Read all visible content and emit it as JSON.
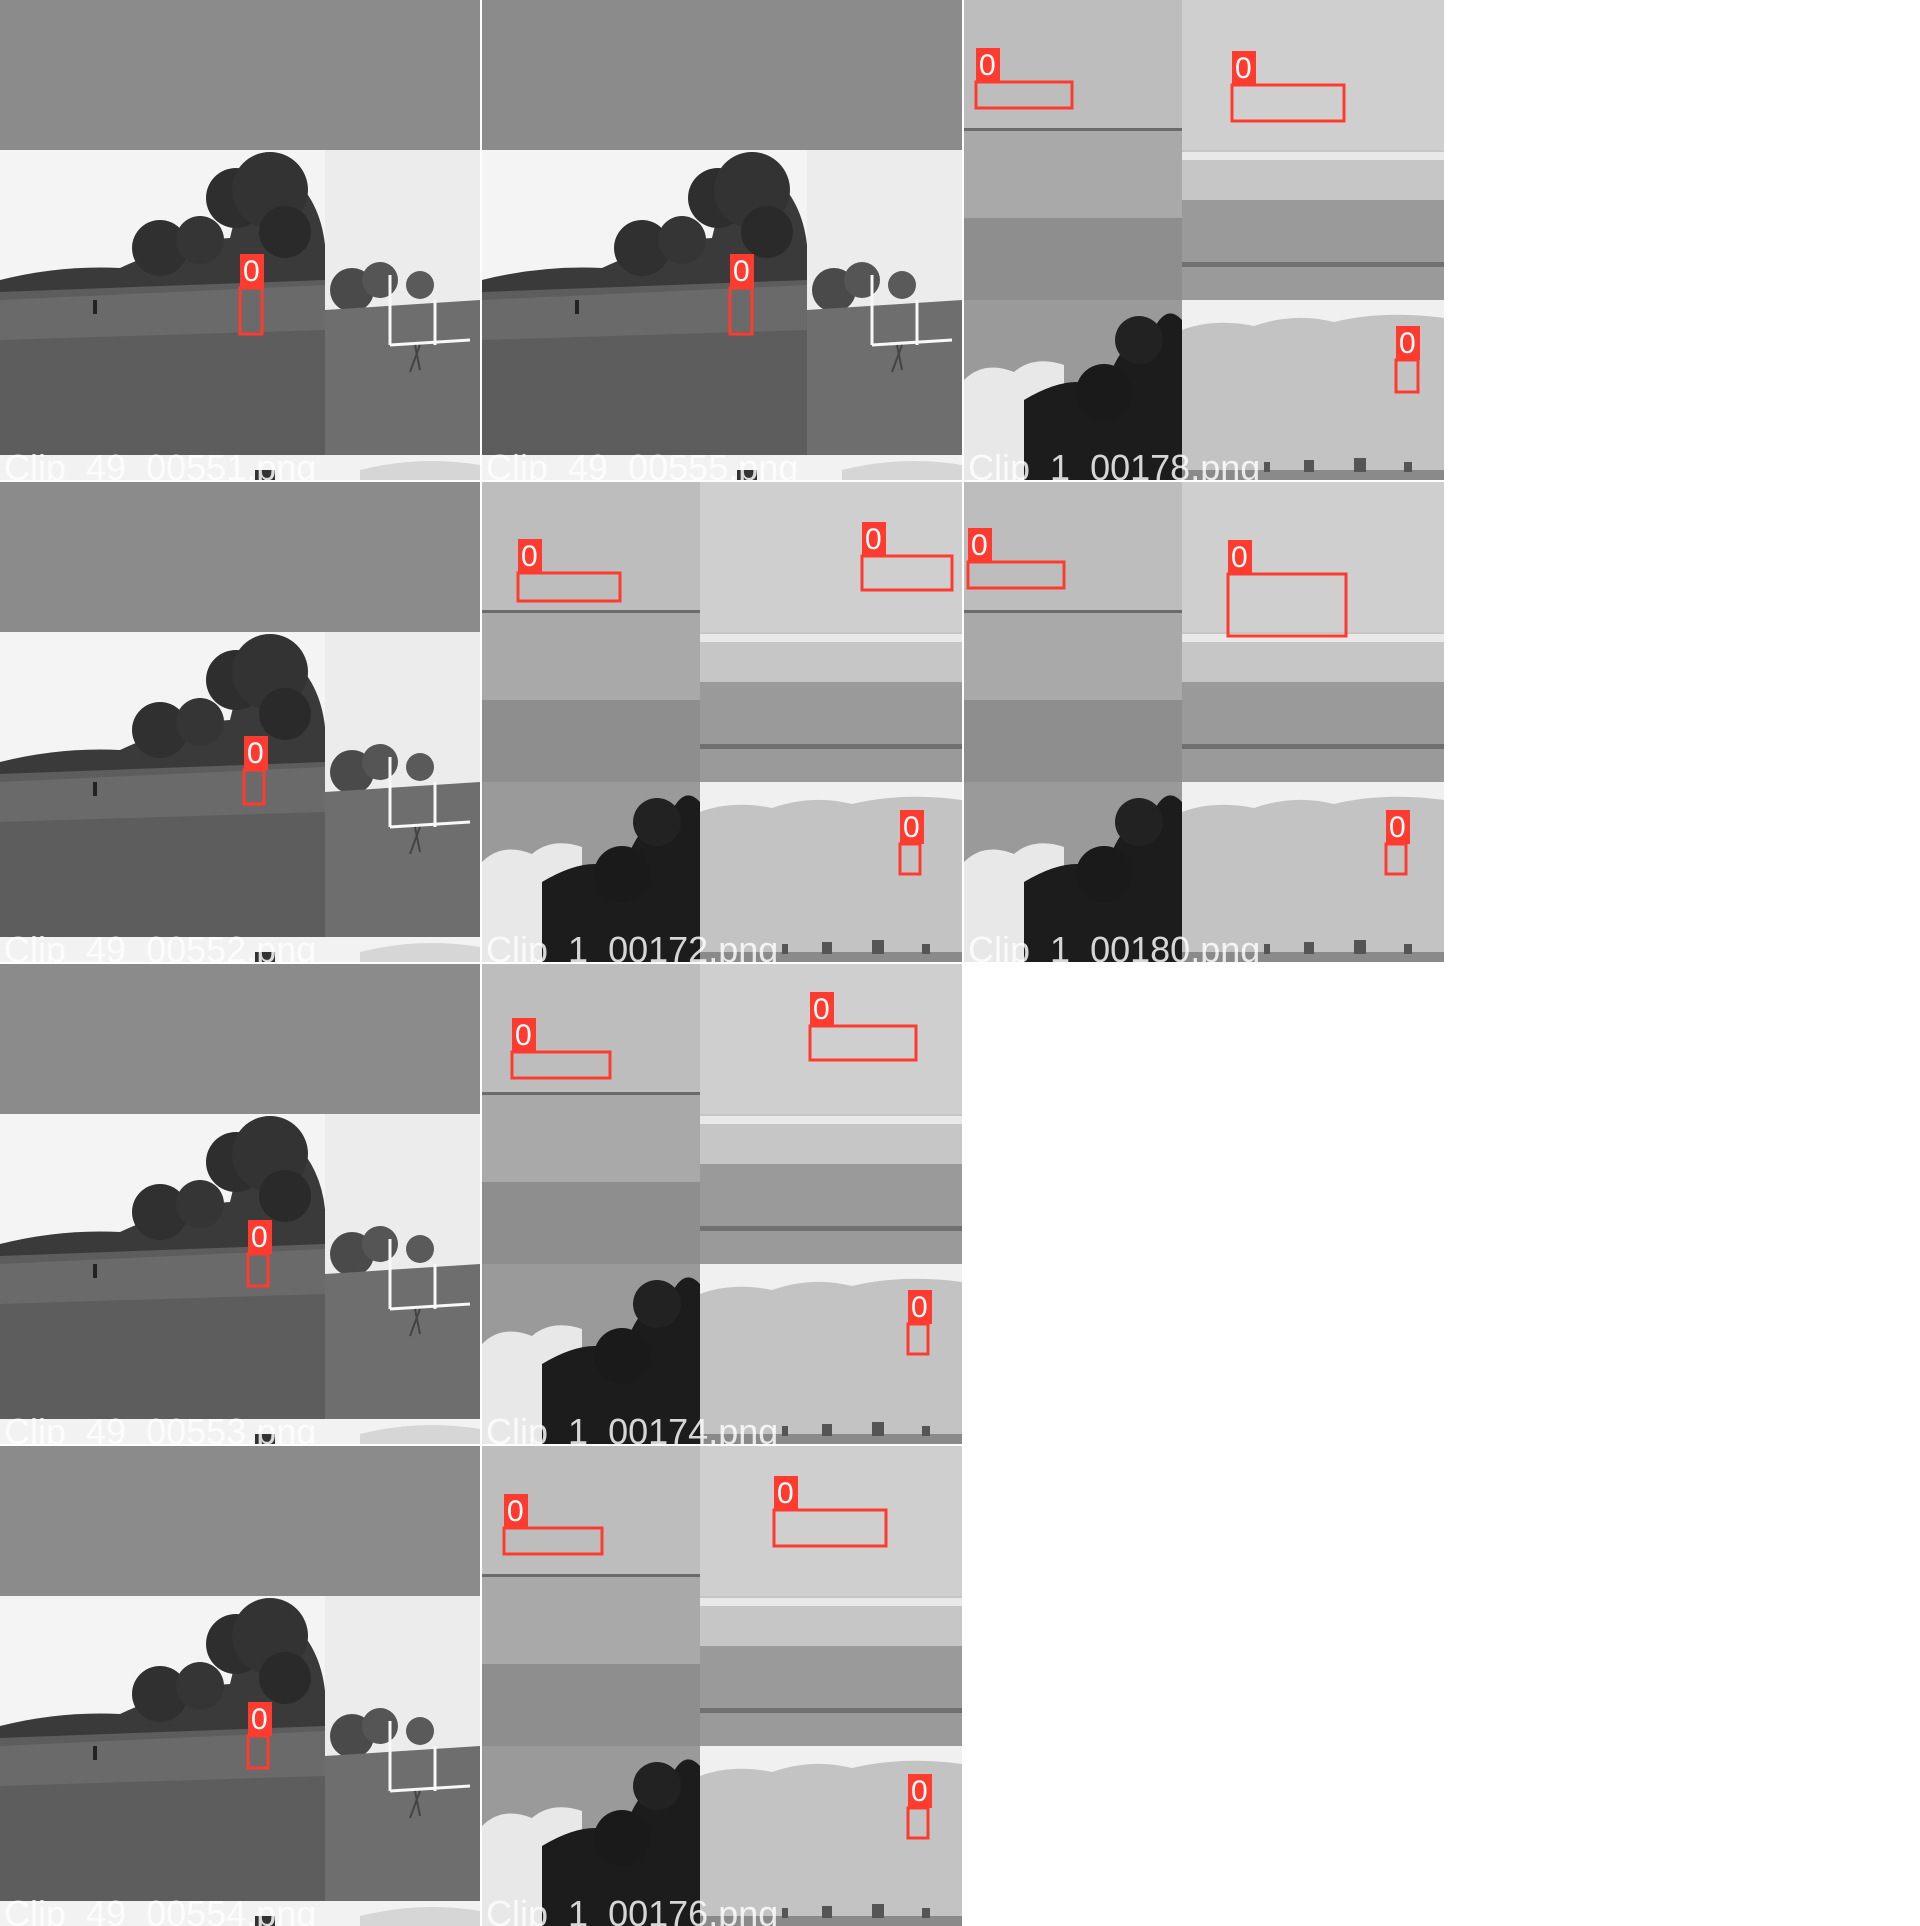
{
  "mosaic": {
    "background_color": "#ffffff",
    "box_color": "#ff3b30",
    "label_color": "#ffffff",
    "tiles": [
      {
        "scene": "field",
        "caption": "Clip_49_00551.png",
        "boxes": [
          {
            "label": "0"
          }
        ]
      },
      {
        "scene": "field",
        "caption": "Clip_49_00555.png",
        "boxes": [
          {
            "label": "0"
          }
        ]
      },
      {
        "scene": "wall",
        "caption": "Clip_1_00178.png",
        "boxes": [
          {
            "label": "0"
          },
          {
            "label": "0"
          },
          {
            "label": "0"
          }
        ]
      },
      {
        "scene": "field",
        "caption": "Clip_49_00552.png",
        "boxes": [
          {
            "label": "0"
          }
        ]
      },
      {
        "scene": "wall",
        "caption": "Clip_1_00172.png",
        "boxes": [
          {
            "label": "0"
          },
          {
            "label": "0"
          },
          {
            "label": "0"
          }
        ]
      },
      {
        "scene": "wall",
        "caption": "Clip_1_00180.png",
        "boxes": [
          {
            "label": "0"
          },
          {
            "label": "0"
          },
          {
            "label": "0"
          }
        ]
      },
      {
        "scene": "field",
        "caption": "Clip_49_00553.png",
        "boxes": [
          {
            "label": "0"
          }
        ]
      },
      {
        "scene": "wall",
        "caption": "Clip_1_00174.png",
        "boxes": [
          {
            "label": "0"
          },
          {
            "label": "0"
          },
          {
            "label": "0"
          }
        ]
      },
      {
        "scene": "field",
        "caption": "Clip_49_00554.png",
        "boxes": [
          {
            "label": "0"
          }
        ]
      },
      {
        "scene": "wall",
        "caption": "Clip_1_00176.png",
        "boxes": [
          {
            "label": "0"
          },
          {
            "label": "0"
          },
          {
            "label": "0"
          }
        ]
      }
    ]
  }
}
